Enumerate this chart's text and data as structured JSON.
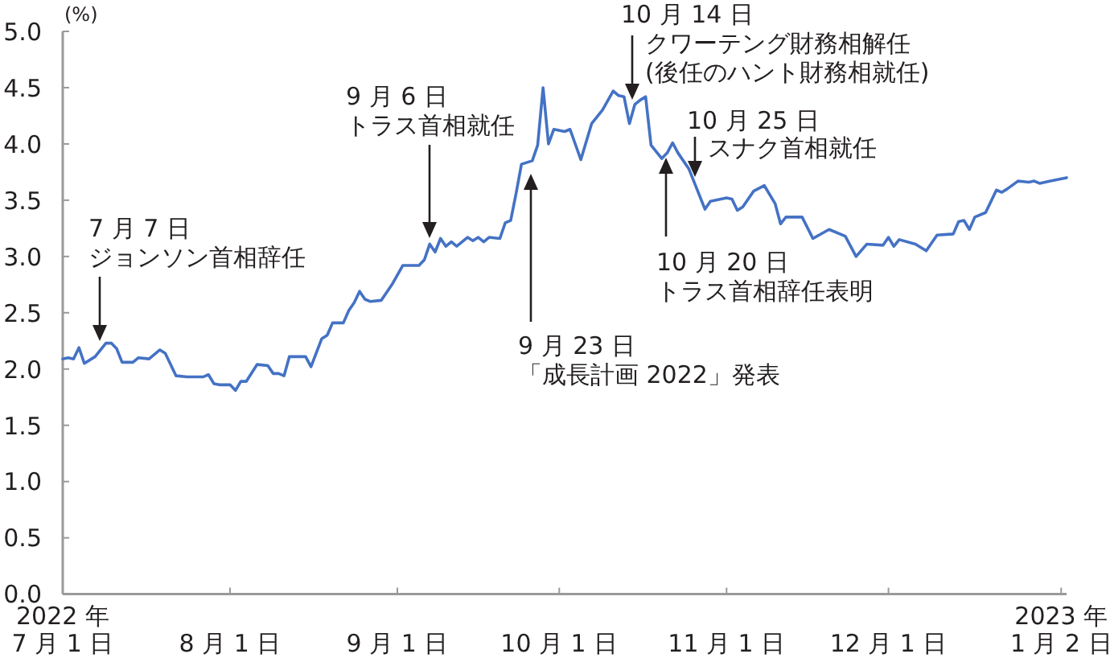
{
  "chart_data": {
    "type": "line",
    "ylabel": "(%)",
    "x": [
      "2022-07-01",
      "2022-07-02",
      "2022-07-03",
      "2022-07-04",
      "2022-07-05",
      "2022-07-07",
      "2022-07-09",
      "2022-07-10",
      "2022-07-11",
      "2022-07-12",
      "2022-07-14",
      "2022-07-15",
      "2022-07-17",
      "2022-07-19",
      "2022-07-20",
      "2022-07-22",
      "2022-07-24",
      "2022-07-27",
      "2022-07-28",
      "2022-07-29",
      "2022-07-30",
      "2022-08-01",
      "2022-08-02",
      "2022-08-03",
      "2022-08-04",
      "2022-08-06",
      "2022-08-08",
      "2022-08-09",
      "2022-08-10",
      "2022-08-11",
      "2022-08-12",
      "2022-08-15",
      "2022-08-16",
      "2022-08-18",
      "2022-08-19",
      "2022-08-20",
      "2022-08-22",
      "2022-08-23",
      "2022-08-24",
      "2022-08-25",
      "2022-08-26",
      "2022-08-27",
      "2022-08-29",
      "2022-08-31",
      "2022-09-02",
      "2022-09-05",
      "2022-09-06",
      "2022-09-07",
      "2022-09-08",
      "2022-09-09",
      "2022-09-10",
      "2022-09-11",
      "2022-09-12",
      "2022-09-14",
      "2022-09-15",
      "2022-09-16",
      "2022-09-17",
      "2022-09-18",
      "2022-09-20",
      "2022-09-21",
      "2022-09-22",
      "2022-09-23",
      "2022-09-24",
      "2022-09-26",
      "2022-09-27",
      "2022-09-28",
      "2022-09-29",
      "2022-09-30",
      "2022-10-02",
      "2022-10-03",
      "2022-10-05",
      "2022-10-07",
      "2022-10-09",
      "2022-10-11",
      "2022-10-12",
      "2022-10-13",
      "2022-10-14",
      "2022-10-15",
      "2022-10-16",
      "2022-10-17",
      "2022-10-18",
      "2022-10-20",
      "2022-10-21",
      "2022-10-22",
      "2022-10-23",
      "2022-10-25",
      "2022-10-28",
      "2022-10-29",
      "2022-11-01",
      "2022-11-02",
      "2022-11-03",
      "2022-11-04",
      "2022-11-06",
      "2022-11-08",
      "2022-11-10",
      "2022-11-11",
      "2022-11-12",
      "2022-11-15",
      "2022-11-17",
      "2022-11-20",
      "2022-11-23",
      "2022-11-25",
      "2022-11-27",
      "2022-11-30",
      "2022-12-01",
      "2022-12-02",
      "2022-12-03",
      "2022-12-06",
      "2022-12-08",
      "2022-12-10",
      "2022-12-13",
      "2022-12-14",
      "2022-12-15",
      "2022-12-16",
      "2022-12-17",
      "2022-12-19",
      "2022-12-21",
      "2022-12-22",
      "2022-12-23",
      "2022-12-25",
      "2022-12-27",
      "2022-12-28",
      "2022-12-29",
      "2022-12-31",
      "2023-01-03"
    ],
    "series": [
      {
        "color": "#4472c4",
        "values": [
          2.09,
          2.1,
          2.09,
          2.19,
          2.05,
          2.11,
          2.23,
          2.23,
          2.18,
          2.06,
          2.06,
          2.1,
          2.09,
          2.17,
          2.14,
          1.94,
          1.93,
          1.93,
          1.95,
          1.87,
          1.86,
          1.86,
          1.81,
          1.89,
          1.89,
          2.04,
          2.03,
          1.96,
          1.96,
          1.94,
          2.11,
          2.11,
          2.02,
          2.27,
          2.3,
          2.41,
          2.41,
          2.52,
          2.59,
          2.69,
          2.62,
          2.6,
          2.61,
          2.75,
          2.92,
          2.92,
          2.97,
          3.11,
          3.04,
          3.16,
          3.09,
          3.13,
          3.09,
          3.17,
          3.14,
          3.17,
          3.13,
          3.17,
          3.16,
          3.3,
          3.32,
          3.56,
          3.82,
          3.85,
          3.99,
          4.5,
          4.0,
          4.13,
          4.11,
          4.13,
          3.86,
          4.18,
          4.3,
          4.47,
          4.43,
          4.42,
          4.18,
          4.35,
          4.39,
          4.42,
          3.99,
          3.87,
          3.92,
          4.01,
          3.92,
          3.78,
          3.42,
          3.49,
          3.52,
          3.51,
          3.41,
          3.44,
          3.58,
          3.63,
          3.47,
          3.29,
          3.35,
          3.35,
          3.16,
          3.24,
          3.18,
          3.0,
          3.11,
          3.1,
          3.17,
          3.09,
          3.15,
          3.11,
          3.05,
          3.19,
          3.2,
          3.31,
          3.32,
          3.24,
          3.35,
          3.39,
          3.59,
          3.57,
          3.6,
          3.67,
          3.66,
          3.67,
          3.65,
          3.67,
          3.7
        ]
      }
    ],
    "xlim": [
      "2022-07-01",
      "2023-01-03"
    ],
    "xticks": [
      {
        "value": "2022-07-01",
        "label": "2022 年\n7 月 1 日"
      },
      {
        "value": "2022-08-01",
        "label": "8 月 1 日"
      },
      {
        "value": "2022-09-01",
        "label": "9 月 1 日"
      },
      {
        "value": "2022-10-01",
        "label": "10 月 1 日"
      },
      {
        "value": "2022-11-01",
        "label": "11 月 1 日"
      },
      {
        "value": "2022-12-01",
        "label": "12 月 1 日"
      },
      {
        "value": "2023-01-02",
        "label": "2023 年\n1 月 2 日"
      }
    ],
    "ylim": [
      0,
      5
    ],
    "yticks": [
      {
        "value": 0,
        "label": "0.0"
      },
      0.5,
      {
        "value": 1,
        "label": "1.0"
      },
      1.5,
      {
        "value": 2,
        "label": "2.0"
      },
      2.5,
      {
        "value": 3,
        "label": "3.0"
      },
      3.5,
      {
        "value": 4,
        "label": "4.0"
      },
      4.5,
      {
        "value": 5,
        "label": "5.0"
      }
    ],
    "annotations": [
      "7 月 7 日",
      "ジョンソン首相辞任",
      "9 月 6 日",
      "トラス首相就任",
      "9 月 23 日",
      "「成長計画 2022」発表",
      "10 月 14 日",
      "クワーテング財務相解任",
      "(後任のハント財務相就任)",
      "10 月 25 日",
      "スナク首相就任",
      "10 月 20 日",
      "トラス首相辞任表明"
    ]
  }
}
